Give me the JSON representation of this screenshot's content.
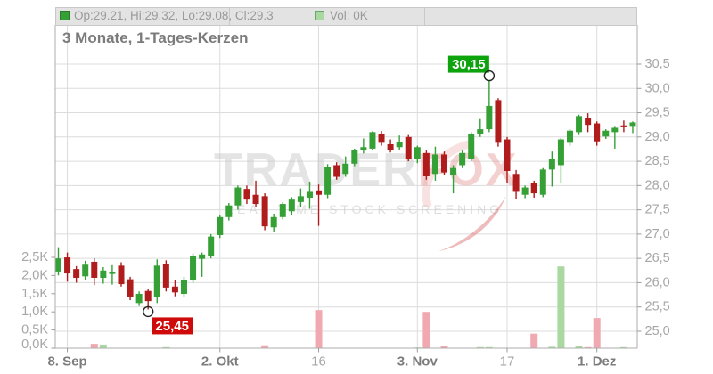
{
  "title": "3 Monate, 1-Tages-Kerzen",
  "legend": {
    "ohlc_label": "Op:29.21, Hi:29.32, Lo:29.08, Cl:29.3",
    "vol_label": "Vol: 0K"
  },
  "watermark": {
    "brand_gray": "TRADER",
    "brand_red": "FOX",
    "subtitle": "REAL TIME STOCK SCREENING"
  },
  "colors": {
    "candle_up": "#35a035",
    "candle_down": "#b01b1b",
    "volume_up": "#a9d8a0",
    "volume_down": "#f0a9b1",
    "annotation_high_bg": "#0ca30c",
    "annotation_low_bg": "#cf0a0a",
    "annotation_text": "#ffffff",
    "grid": "#dcdcdc",
    "axis_line": "#adadad",
    "tick": "#9b9b9b",
    "axis_text": "#a6a6a6",
    "axis_major_text": "#7c7c7c",
    "legend_bg": "#e3e3e3",
    "legend_swatch_up_border": "#2a7a2a",
    "legend_swatch_vol_border": "#6aa86a"
  },
  "chart_data": {
    "type": "candlestick",
    "title": "3 Monate, 1-Tages-Kerzen",
    "price_axis": {
      "min": 25.0,
      "max": 30.5,
      "step": 0.5,
      "tick_labels": [
        "30,5",
        "30,0",
        "29,5",
        "29,0",
        "28,5",
        "28,0",
        "27,5",
        "27,0",
        "26,5",
        "26,0",
        "25,5",
        "25,0"
      ],
      "tick_values": [
        30.5,
        30.0,
        29.5,
        29.0,
        28.5,
        28.0,
        27.5,
        27.0,
        26.5,
        26.0,
        25.5,
        25.0
      ]
    },
    "volume_axis": {
      "min": 0,
      "max": 2.5,
      "step": 0.5,
      "unit": "K",
      "tick_labels": [
        "2,5K",
        "2,0K",
        "1,5K",
        "1,0K",
        "0,5K",
        "0,0K"
      ],
      "tick_values": [
        2.5,
        2.0,
        1.5,
        1.0,
        0.5,
        0.0
      ]
    },
    "x_axis": {
      "ticks": [
        {
          "label": "8. Sep",
          "index": 1,
          "major": true
        },
        {
          "label": "2. Okt",
          "index": 18,
          "major": true
        },
        {
          "label": "16",
          "index": 29,
          "major": false
        },
        {
          "label": "3. Nov",
          "index": 40,
          "major": true
        },
        {
          "label": "17",
          "index": 50,
          "major": false
        },
        {
          "label": "1. Dez",
          "index": 60,
          "major": true
        }
      ]
    },
    "candles": [
      [
        26.23,
        26.73,
        26.15,
        26.5
      ],
      [
        26.52,
        26.62,
        26.02,
        26.19
      ],
      [
        26.28,
        26.34,
        26.0,
        26.1
      ],
      [
        26.13,
        26.45,
        26.06,
        26.37
      ],
      [
        26.43,
        26.5,
        25.95,
        26.1
      ],
      [
        26.1,
        26.32,
        25.98,
        26.25
      ],
      [
        26.18,
        26.36,
        25.96,
        26.22
      ],
      [
        26.35,
        26.42,
        25.92,
        25.97
      ],
      [
        26.07,
        26.12,
        25.64,
        25.7
      ],
      [
        25.58,
        25.82,
        25.52,
        25.77
      ],
      [
        25.83,
        25.88,
        25.45,
        25.62
      ],
      [
        25.7,
        26.48,
        25.58,
        26.35
      ],
      [
        26.38,
        26.46,
        25.82,
        25.9
      ],
      [
        25.92,
        26.05,
        25.72,
        25.8
      ],
      [
        25.77,
        26.12,
        25.7,
        26.06
      ],
      [
        26.06,
        26.6,
        26.0,
        26.55
      ],
      [
        26.49,
        26.62,
        26.12,
        26.58
      ],
      [
        26.55,
        27.0,
        26.5,
        26.95
      ],
      [
        26.98,
        27.4,
        26.92,
        27.35
      ],
      [
        27.35,
        27.64,
        27.28,
        27.59
      ],
      [
        27.59,
        28.0,
        27.5,
        27.96
      ],
      [
        27.93,
        28.0,
        27.62,
        27.71
      ],
      [
        27.81,
        28.1,
        27.56,
        27.62
      ],
      [
        27.78,
        27.84,
        27.08,
        27.16
      ],
      [
        27.14,
        27.42,
        27.05,
        27.35
      ],
      [
        27.35,
        27.66,
        27.3,
        27.62
      ],
      [
        27.47,
        27.76,
        27.4,
        27.71
      ],
      [
        27.66,
        27.94,
        27.56,
        27.78
      ],
      [
        27.75,
        28.08,
        27.52,
        27.87
      ],
      [
        27.9,
        28.02,
        27.17,
        27.81
      ],
      [
        27.81,
        28.44,
        27.74,
        28.39
      ],
      [
        28.42,
        28.48,
        28.12,
        28.18
      ],
      [
        28.24,
        28.6,
        28.18,
        28.45
      ],
      [
        28.45,
        28.76,
        28.4,
        28.73
      ],
      [
        28.73,
        28.97,
        28.66,
        28.79
      ],
      [
        28.76,
        29.12,
        28.72,
        29.1
      ],
      [
        29.07,
        29.12,
        28.82,
        28.88
      ],
      [
        28.85,
        28.95,
        28.68,
        28.73
      ],
      [
        28.79,
        29.03,
        28.74,
        28.9
      ],
      [
        29.0,
        29.04,
        28.5,
        28.54
      ],
      [
        28.55,
        28.82,
        28.46,
        28.79
      ],
      [
        28.67,
        28.72,
        28.12,
        28.19
      ],
      [
        28.24,
        28.8,
        28.1,
        28.64
      ],
      [
        28.64,
        28.7,
        28.22,
        28.27
      ],
      [
        28.21,
        28.42,
        27.84,
        28.36
      ],
      [
        28.42,
        28.72,
        28.36,
        28.67
      ],
      [
        28.55,
        29.1,
        28.5,
        29.07
      ],
      [
        29.07,
        29.37,
        29.0,
        29.16
      ],
      [
        29.16,
        30.15,
        29.1,
        29.64
      ],
      [
        29.76,
        29.8,
        28.8,
        28.88
      ],
      [
        28.95,
        29.0,
        28.06,
        28.3
      ],
      [
        28.24,
        28.32,
        27.72,
        27.87
      ],
      [
        27.81,
        28.0,
        27.74,
        27.96
      ],
      [
        28.05,
        28.1,
        27.75,
        27.84
      ],
      [
        27.81,
        28.36,
        27.76,
        28.33
      ],
      [
        28.33,
        28.7,
        27.98,
        28.54
      ],
      [
        28.42,
        28.98,
        28.05,
        28.95
      ],
      [
        28.88,
        29.16,
        28.82,
        29.13
      ],
      [
        29.1,
        29.46,
        29.04,
        29.43
      ],
      [
        29.4,
        29.49,
        29.1,
        29.25
      ],
      [
        29.28,
        29.32,
        28.82,
        28.91
      ],
      [
        29.01,
        29.16,
        28.96,
        29.13
      ],
      [
        29.1,
        29.21,
        28.76,
        29.19
      ],
      [
        29.24,
        29.34,
        29.1,
        29.2
      ],
      [
        29.21,
        29.32,
        29.08,
        29.3
      ]
    ],
    "volume_bars": [
      {
        "index": 4,
        "value_k": 0.12,
        "direction": "down"
      },
      {
        "index": 5,
        "value_k": 0.1,
        "direction": "up"
      },
      {
        "index": 12,
        "value_k": 0.03,
        "direction": "up"
      },
      {
        "index": 23,
        "value_k": 0.08,
        "direction": "down"
      },
      {
        "index": 29,
        "value_k": 1.05,
        "direction": "down"
      },
      {
        "index": 40,
        "value_k": 0.02,
        "direction": "up"
      },
      {
        "index": 41,
        "value_k": 1.0,
        "direction": "down"
      },
      {
        "index": 43,
        "value_k": 0.07,
        "direction": "down"
      },
      {
        "index": 47,
        "value_k": 0.03,
        "direction": "up"
      },
      {
        "index": 48,
        "value_k": 0.03,
        "direction": "up"
      },
      {
        "index": 53,
        "value_k": 0.4,
        "direction": "down"
      },
      {
        "index": 55,
        "value_k": 0.04,
        "direction": "up"
      },
      {
        "index": 56,
        "value_k": 2.25,
        "direction": "up"
      },
      {
        "index": 58,
        "value_k": 0.05,
        "direction": "up"
      },
      {
        "index": 59,
        "value_k": 0.03,
        "direction": "down"
      },
      {
        "index": 60,
        "value_k": 0.83,
        "direction": "down"
      },
      {
        "index": 63,
        "value_k": 0.03,
        "direction": "up"
      }
    ],
    "annotations": [
      {
        "type": "high",
        "label": "30,15",
        "price": 30.15,
        "candle_index": 48
      },
      {
        "type": "low",
        "label": "25,45",
        "price": 25.45,
        "candle_index": 10
      }
    ]
  }
}
